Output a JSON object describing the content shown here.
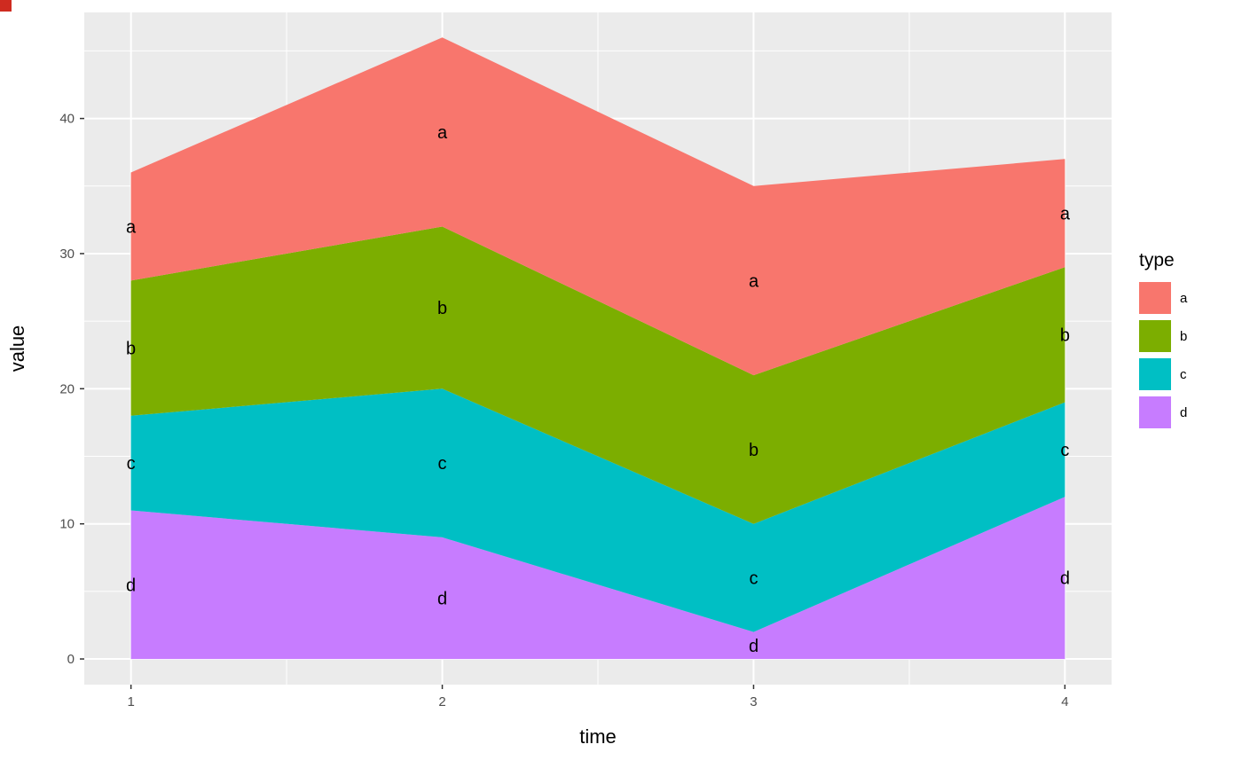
{
  "chart_data": {
    "type": "area",
    "stacked": true,
    "title": "",
    "xlabel": "time",
    "ylabel": "value",
    "x": [
      1,
      2,
      3,
      4
    ],
    "series": [
      {
        "name": "a",
        "color": "#F8766D",
        "values": [
          8,
          14,
          14,
          8
        ]
      },
      {
        "name": "b",
        "color": "#7CAE00",
        "values": [
          10,
          12,
          11,
          10
        ]
      },
      {
        "name": "c",
        "color": "#00BFC4",
        "values": [
          7,
          11,
          8,
          7
        ]
      },
      {
        "name": "d",
        "color": "#C77CFF",
        "values": [
          11,
          9,
          2,
          12
        ]
      }
    ],
    "stack_order_bottom_to_top": [
      "d",
      "c",
      "b",
      "a"
    ],
    "stack_totals": [
      36,
      46,
      35,
      37
    ],
    "x_ticks": [
      1,
      2,
      3,
      4
    ],
    "x_minor_ticks": [
      1.5,
      2.5,
      3.5
    ],
    "y_ticks": [
      0,
      10,
      20,
      30,
      40
    ],
    "y_minor_ticks": [
      5,
      15,
      25,
      35,
      45
    ],
    "xlim": [
      0.85,
      4.15
    ],
    "ylim": [
      -1.9,
      47.85
    ],
    "grid": true,
    "area_labels": true,
    "legend": {
      "title": "type",
      "position": "right"
    },
    "panel_background": "#EBEBEB",
    "grid_color": "#FFFFFF",
    "axis_text_color": "#4D4D4D",
    "axis_title_color": "#000000",
    "label_color": "#000000",
    "tick_color": "#333333"
  }
}
